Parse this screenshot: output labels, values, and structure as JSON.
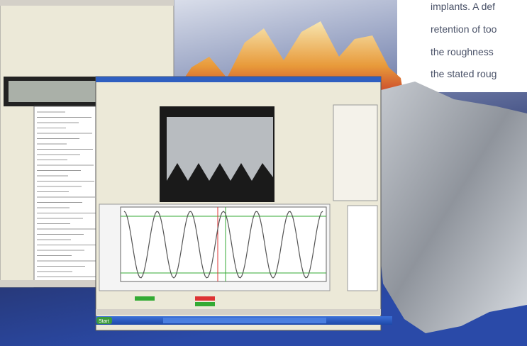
{
  "paragraph": {
    "lines": [
      "implants. A def",
      "retention of too",
      "the roughness",
      "the stated roug"
    ]
  },
  "taskbar": {
    "start": "Start"
  }
}
